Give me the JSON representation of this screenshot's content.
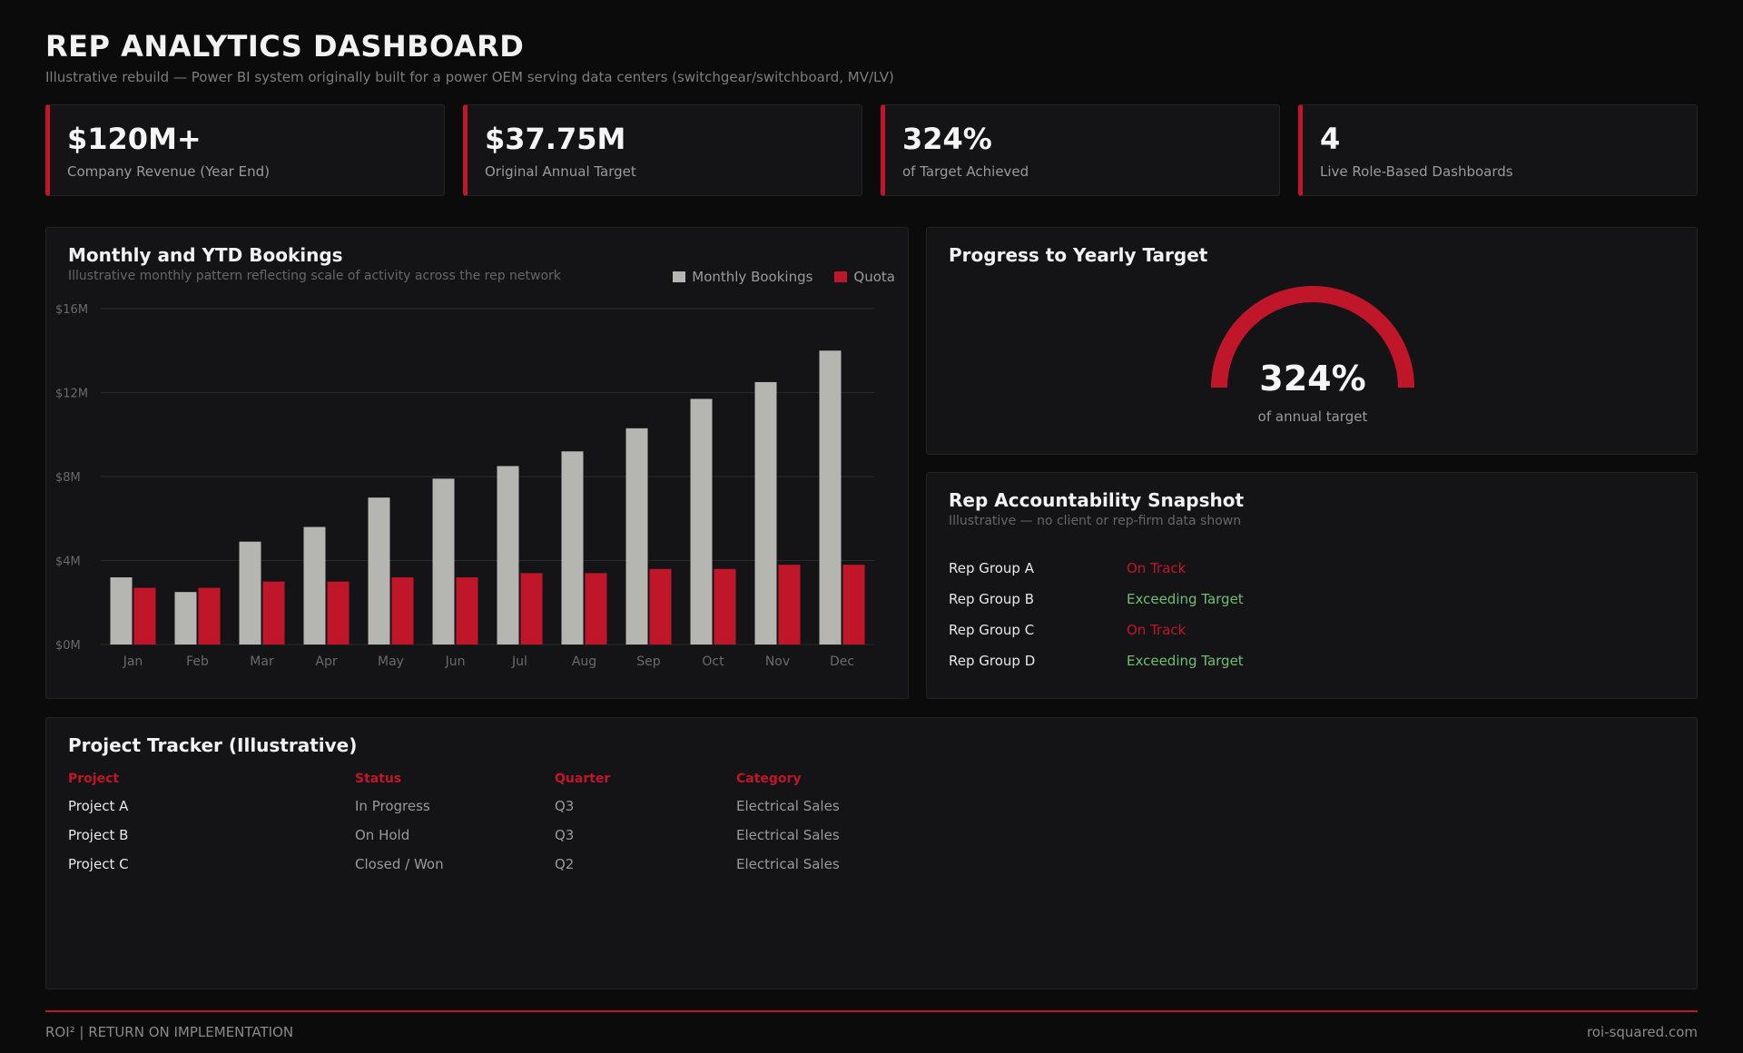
{
  "header": {
    "title": "REP ANALYTICS DASHBOARD",
    "subtitle": "Illustrative rebuild — Power BI system originally built for a power OEM serving data centers (switchgear/switchboard, MV/LV)"
  },
  "kpis": [
    {
      "value": "$120M+",
      "label": "Company Revenue (Year End)"
    },
    {
      "value": "$37.75M",
      "label": "Original Annual Target"
    },
    {
      "value": "324%",
      "label": "of Target Achieved"
    },
    {
      "value": "4",
      "label": "Live Role-Based Dashboards"
    }
  ],
  "bookings": {
    "title": "Monthly and YTD Bookings",
    "subtitle": "Illustrative monthly pattern reflecting scale of activity across the rep network",
    "legend": [
      {
        "label": "Monthly Bookings",
        "color": "#b5b5b2"
      },
      {
        "label": "Quota",
        "color": "#c0162a"
      }
    ]
  },
  "chart_data": {
    "type": "bar",
    "categories": [
      "Jan",
      "Feb",
      "Mar",
      "Apr",
      "May",
      "Jun",
      "Jul",
      "Aug",
      "Sep",
      "Oct",
      "Nov",
      "Dec"
    ],
    "series": [
      {
        "name": "Monthly Bookings",
        "color": "#b5b5b2",
        "values": [
          3.2,
          2.5,
          4.9,
          5.6,
          7.0,
          7.9,
          8.5,
          9.2,
          10.3,
          11.7,
          12.5,
          14.0
        ]
      },
      {
        "name": "Quota",
        "color": "#c0162a",
        "values": [
          2.7,
          2.7,
          3.0,
          3.0,
          3.2,
          3.2,
          3.4,
          3.4,
          3.6,
          3.6,
          3.8,
          3.8
        ]
      }
    ],
    "yticks": [
      "$0M",
      "$4M",
      "$8M",
      "$12M",
      "$16M"
    ],
    "ylim": [
      0,
      16
    ],
    "grid": true,
    "legend_position": "top-right"
  },
  "progress": {
    "title": "Progress to Yearly Target",
    "value": "324%",
    "label": "of annual target",
    "color": "#c0162a"
  },
  "accountability": {
    "title": "Rep Accountability Snapshot",
    "subtitle": "Illustrative — no client or rep-firm data shown",
    "rows": [
      {
        "name": "Rep Group A",
        "status": "On Track"
      },
      {
        "name": "Rep Group B",
        "status": "Exceeding Target"
      },
      {
        "name": "Rep Group C",
        "status": "On Track"
      },
      {
        "name": "Rep Group D",
        "status": "Exceeding Target"
      }
    ]
  },
  "tracker": {
    "title": "Project Tracker (Illustrative)",
    "columns": [
      "Project",
      "Status",
      "Quarter",
      "Category"
    ],
    "rows": [
      [
        "Project A",
        "In Progress",
        "Q3",
        "Electrical Sales"
      ],
      [
        "Project B",
        "On Hold",
        "Q3",
        "Electrical Sales"
      ],
      [
        "Project C",
        "Closed / Won",
        "Q2",
        "Electrical Sales"
      ]
    ]
  },
  "footer": {
    "left": "ROI²  |  RETURN ON IMPLEMENTATION",
    "right": "roi-squared.com"
  }
}
